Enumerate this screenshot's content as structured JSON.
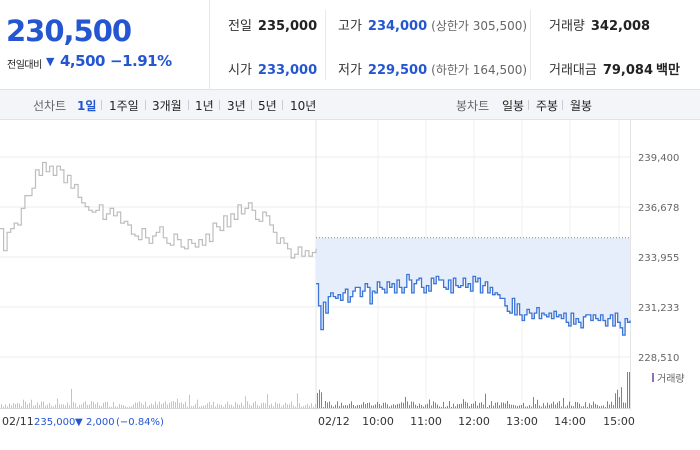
{
  "summary": {
    "current_price": "230,500",
    "change_label": "전일대비",
    "change_arrow": "▼",
    "change_amount": "4,500",
    "change_percent": "−1.91%",
    "prev_close_label": "전일",
    "prev_close": "235,000",
    "high_label": "고가",
    "high": "234,000",
    "upper_limit": "(상한가 305,500)",
    "volume_label": "거래량",
    "volume": "342,008",
    "open_label": "시가",
    "open": "233,000",
    "low_label": "저가",
    "low": "229,500",
    "lower_limit": "(하한가 164,500)",
    "turnover_label": "거래대금",
    "turnover": "79,084",
    "turnover_unit": "백만"
  },
  "toolbar": {
    "line_chart_label": "선차트",
    "periods": [
      "1일",
      "1주일",
      "3개월",
      "1년",
      "3년",
      "5년",
      "10년"
    ],
    "active_period": "1일",
    "candle_label": "봉차트",
    "candle_periods": [
      "일봉",
      "주봉",
      "월봉"
    ]
  },
  "colors": {
    "accent": "#2356d0",
    "line_today": "#3a74d6",
    "line_prev": "#bdbdbd",
    "fill_below_prev": "#e7eefb",
    "volume_today": "#8a6fc4",
    "volume_prev": "#c4c4c4"
  },
  "chart_data": {
    "type": "line",
    "y_ticks": [
      "239,400",
      "236,678",
      "233,955",
      "231,233",
      "228,510"
    ],
    "ylim": [
      228510,
      239400
    ],
    "prev_day": {
      "date": "02/11",
      "close": "235,000",
      "change_arrow": "▼",
      "change": "2,000",
      "change_pct": "(−0.84%)",
      "values": [
        235500,
        234300,
        235300,
        235500,
        235800,
        235700,
        236600,
        237300,
        237300,
        237700,
        238700,
        238400,
        239100,
        238600,
        238900,
        238400,
        238900,
        238700,
        238000,
        238400,
        237700,
        237900,
        237200,
        236900,
        236700,
        236500,
        236400,
        236500,
        236800,
        236000,
        236300,
        236600,
        236200,
        236400,
        235800,
        235900,
        235700,
        235200,
        235100,
        234900,
        235500,
        235000,
        234700,
        235100,
        235300,
        235600,
        235000,
        234700,
        234600,
        235200,
        234900,
        234500,
        234400,
        234900,
        234700,
        234500,
        234900,
        234600,
        235200,
        234800,
        235800,
        235600,
        235400,
        236200,
        235600,
        236300,
        236000,
        236800,
        236300,
        236600,
        236900,
        236500,
        236000,
        235900,
        236400,
        236200,
        235700,
        235300,
        234700,
        235000,
        234700,
        234400,
        233900,
        234100,
        234500,
        234000,
        234300,
        234000,
        234200,
        234400
      ]
    },
    "today": {
      "date": "02/12",
      "prev_close_value": 235000,
      "values": [
        232500,
        231300,
        230000,
        231500,
        230900,
        231800,
        232000,
        231800,
        231700,
        231900,
        231600,
        232000,
        232200,
        231500,
        231800,
        232100,
        232300,
        232300,
        231800,
        232100,
        232500,
        232300,
        231400,
        232100,
        232000,
        232600,
        232300,
        232200,
        232000,
        232600,
        232300,
        232500,
        232000,
        232700,
        232300,
        232000,
        232300,
        233000,
        232700,
        232000,
        232500,
        232700,
        232800,
        232300,
        232000,
        232400,
        232100,
        232800,
        232500,
        232900,
        232700,
        232700,
        232300,
        232200,
        232700,
        232000,
        232800,
        232400,
        232300,
        232400,
        232800,
        232300,
        232500,
        232100,
        232900,
        232600,
        232800,
        232000,
        232400,
        232600,
        232000,
        232300,
        231900,
        232000,
        231900,
        231700,
        231700,
        231300,
        231000,
        230900,
        231700,
        230800,
        231400,
        230800,
        230500,
        230800,
        231100,
        230900,
        230600,
        230900,
        231200,
        230600,
        230900,
        230800,
        230700,
        230900,
        230600,
        231000,
        230700,
        230800,
        230600,
        230900,
        230400,
        230200,
        230900,
        230300,
        230600,
        230400,
        230100,
        230700,
        230800,
        230800,
        230500,
        230800,
        230600,
        230500,
        230800,
        230500,
        230200,
        230600,
        230800,
        230200,
        230900,
        230400,
        230100,
        229700,
        230600,
        230400,
        230500
      ]
    },
    "time_labels": [
      "10:00",
      "11:00",
      "12:00",
      "13:00",
      "14:00",
      "15:00"
    ],
    "volume_label": "거래량"
  }
}
